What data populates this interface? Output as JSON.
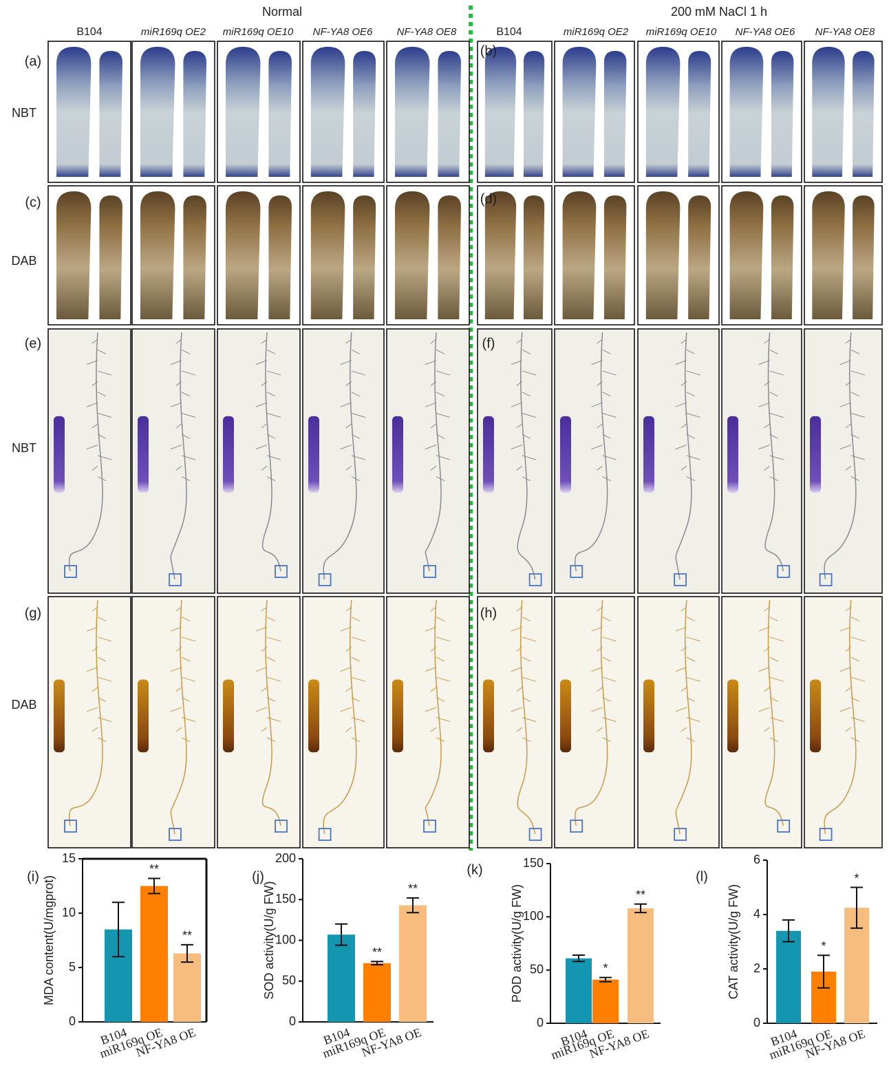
{
  "conditions": [
    "Normal",
    "200 mM NaCl  1 h"
  ],
  "genotypes": [
    "B104",
    "miR169q OE2",
    "miR169q OE10",
    "NF-YA8 OE6",
    "NF-YA8 OE8"
  ],
  "row_labels": [
    "NBT",
    "DAB",
    "NBT",
    "DAB"
  ],
  "panel_labels": [
    "(a)",
    "(b)",
    "(c)",
    "(d)",
    "(e)",
    "(f)",
    "(g)",
    "(h)",
    "(i)",
    "(j)",
    "(k)",
    "(l)"
  ],
  "chart_data": [
    {
      "type": "bar",
      "y_label": "MDA content(U/mgprot)",
      "categories": [
        "B104",
        "miR169q OE",
        "NF-YA8 OE"
      ],
      "values": [
        8.5,
        12.5,
        6.3
      ],
      "errors": [
        2.5,
        0.7,
        0.8
      ],
      "significance": [
        null,
        "**",
        "**"
      ],
      "colors": [
        "#1496b0",
        "#ff8000",
        "#f7bd7f"
      ],
      "ylim": [
        0,
        15
      ],
      "yticks": [
        0,
        5,
        10,
        15
      ],
      "framed": true
    },
    {
      "type": "bar",
      "y_label": "SOD activity(U/g FW)",
      "categories": [
        "B104",
        "miR169q OE",
        "NF-YA8 OE"
      ],
      "values": [
        107,
        72,
        143
      ],
      "errors": [
        13,
        2,
        9
      ],
      "significance": [
        null,
        "**",
        "**"
      ],
      "colors": [
        "#1496b0",
        "#ff8000",
        "#f7bd7f"
      ],
      "ylim": [
        0,
        200
      ],
      "yticks": [
        0,
        50,
        100,
        150,
        200
      ],
      "framed": false
    },
    {
      "type": "bar",
      "y_label": "POD activity(U/g FW)",
      "categories": [
        "B104",
        "miR169q OE",
        "NF-YA8 OE"
      ],
      "values": [
        61,
        41,
        108
      ],
      "errors": [
        3,
        2,
        4
      ],
      "significance": [
        null,
        "*",
        "**"
      ],
      "colors": [
        "#1496b0",
        "#ff8000",
        "#f7bd7f"
      ],
      "ylim": [
        0,
        150
      ],
      "yticks": [
        0,
        50,
        100,
        150
      ],
      "framed": false
    },
    {
      "type": "bar",
      "y_label": "CAT activity(U/g FW)",
      "categories": [
        "B104",
        "miR169q OE",
        "NF-YA8 OE"
      ],
      "values": [
        3.4,
        1.9,
        4.25
      ],
      "errors": [
        0.4,
        0.6,
        0.75
      ],
      "significance": [
        null,
        "*",
        "*"
      ],
      "colors": [
        "#1496b0",
        "#ff8000",
        "#f7bd7f"
      ],
      "ylim": [
        0,
        6
      ],
      "yticks": [
        0,
        2,
        4,
        6
      ],
      "framed": false
    }
  ]
}
